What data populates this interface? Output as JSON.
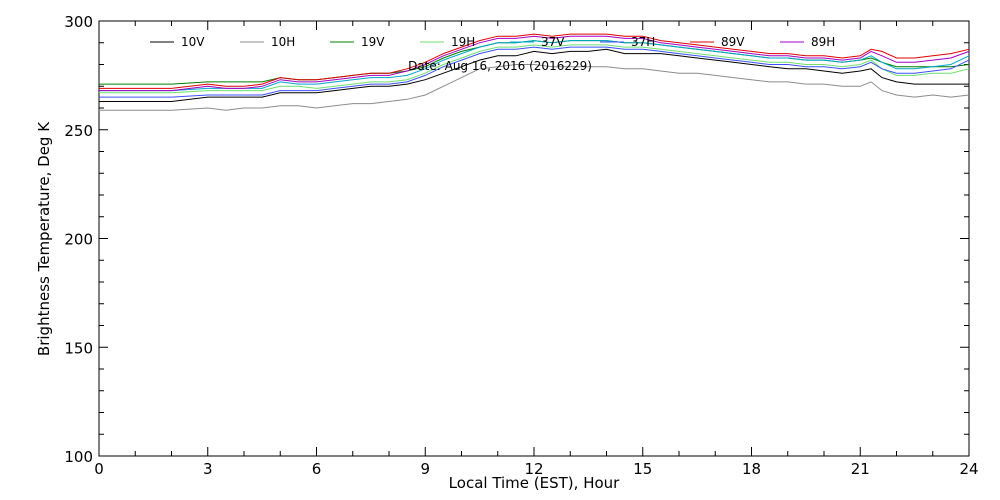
{
  "chart_data": {
    "type": "line",
    "title": "",
    "annotation": "Date: Aug 16, 2016 (2016229)",
    "xlabel": "Local Time (EST), Hour",
    "ylabel": "Brightness Temperature, Deg K",
    "xlim": [
      0,
      24
    ],
    "ylim": [
      100,
      300
    ],
    "x_ticks": [
      0,
      3,
      6,
      9,
      12,
      15,
      18,
      21,
      24
    ],
    "y_ticks": [
      100,
      150,
      200,
      250,
      300
    ],
    "grid": false,
    "legend_position": "top",
    "x": [
      0,
      1,
      2,
      3,
      3.5,
      4,
      4.5,
      5,
      5.5,
      6,
      6.5,
      7,
      7.5,
      8,
      8.5,
      9,
      9.5,
      10,
      10.5,
      11,
      11.5,
      12,
      12.5,
      13,
      13.5,
      14,
      14.5,
      15,
      15.5,
      16,
      16.5,
      17,
      17.5,
      18,
      18.5,
      19,
      19.5,
      20,
      20.5,
      21,
      21.3,
      21.6,
      22,
      22.5,
      23,
      23.5,
      24
    ],
    "series": [
      {
        "name": "10V",
        "color": "#000000",
        "values": [
          263,
          263,
          263,
          265,
          265,
          265,
          265,
          267,
          267,
          267,
          268,
          269,
          270,
          270,
          271,
          273,
          276,
          279,
          282,
          284,
          284,
          286,
          285,
          286,
          286,
          287,
          285,
          285,
          285,
          284,
          283,
          282,
          281,
          280,
          279,
          278,
          278,
          277,
          276,
          277,
          278,
          274,
          272,
          271,
          271,
          271,
          271
        ]
      },
      {
        "name": "10H",
        "color": "#8c8c8c",
        "values": [
          259,
          259,
          259,
          260,
          259,
          260,
          260,
          261,
          261,
          260,
          261,
          262,
          262,
          263,
          264,
          266,
          270,
          274,
          278,
          279,
          280,
          280,
          279,
          279,
          279,
          279,
          278,
          278,
          277,
          276,
          276,
          275,
          274,
          273,
          272,
          272,
          271,
          271,
          270,
          270,
          272,
          268,
          266,
          265,
          266,
          265,
          266
        ]
      },
      {
        "name": "19V",
        "color": "#007f00",
        "values": [
          271,
          271,
          271,
          272,
          272,
          272,
          272,
          274,
          273,
          273,
          274,
          275,
          276,
          276,
          277,
          279,
          283,
          286,
          288,
          290,
          290,
          291,
          290,
          291,
          291,
          291,
          290,
          290,
          289,
          288,
          287,
          286,
          285,
          284,
          283,
          283,
          282,
          282,
          281,
          282,
          283,
          281,
          279,
          279,
          279,
          279,
          280
        ]
      },
      {
        "name": "19H",
        "color": "#6ee06e",
        "values": [
          267,
          267,
          267,
          268,
          268,
          268,
          268,
          270,
          270,
          269,
          270,
          271,
          272,
          272,
          273,
          276,
          280,
          283,
          286,
          288,
          288,
          289,
          288,
          289,
          289,
          289,
          288,
          288,
          287,
          286,
          285,
          284,
          283,
          282,
          281,
          281,
          280,
          280,
          279,
          280,
          282,
          278,
          275,
          275,
          276,
          276,
          278
        ]
      },
      {
        "name": "37V",
        "color": "#00a8c8",
        "values": [
          268,
          268,
          268,
          269,
          269,
          269,
          269,
          272,
          271,
          271,
          272,
          273,
          274,
          274,
          275,
          278,
          282,
          285,
          288,
          290,
          290,
          291,
          290,
          291,
          291,
          291,
          290,
          290,
          289,
          288,
          287,
          286,
          285,
          284,
          283,
          283,
          282,
          282,
          281,
          282,
          284,
          281,
          278,
          278,
          279,
          280,
          284
        ]
      },
      {
        "name": "37H",
        "color": "#3c50ff",
        "values": [
          265,
          265,
          265,
          266,
          266,
          266,
          266,
          268,
          268,
          268,
          269,
          270,
          271,
          271,
          272,
          275,
          279,
          282,
          285,
          287,
          287,
          288,
          287,
          288,
          288,
          288,
          287,
          287,
          286,
          285,
          284,
          283,
          282,
          281,
          280,
          280,
          279,
          279,
          278,
          279,
          281,
          278,
          276,
          276,
          277,
          278,
          282
        ]
      },
      {
        "name": "89V",
        "color": "#e00000",
        "values": [
          269,
          269,
          269,
          271,
          270,
          270,
          271,
          274,
          273,
          273,
          274,
          275,
          276,
          276,
          278,
          281,
          285,
          288,
          291,
          293,
          293,
          294,
          293,
          294,
          294,
          294,
          293,
          293,
          291,
          290,
          289,
          288,
          287,
          286,
          285,
          285,
          284,
          284,
          283,
          284,
          287,
          286,
          283,
          283,
          284,
          285,
          287
        ]
      },
      {
        "name": "89H",
        "color": "#a000c8",
        "values": [
          268,
          268,
          268,
          270,
          269,
          269,
          270,
          273,
          272,
          272,
          273,
          274,
          275,
          275,
          277,
          280,
          284,
          287,
          290,
          292,
          292,
          293,
          292,
          293,
          293,
          293,
          292,
          292,
          290,
          289,
          288,
          287,
          286,
          285,
          284,
          284,
          283,
          283,
          282,
          283,
          286,
          284,
          281,
          281,
          282,
          283,
          286
        ]
      }
    ]
  }
}
